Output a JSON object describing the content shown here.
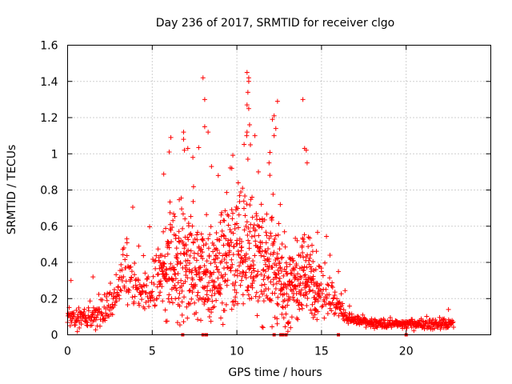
{
  "chart_data": {
    "type": "scatter",
    "title": "Day 236 of 2017, SRMTID for receiver clgo",
    "xlabel": "GPS time / hours",
    "ylabel": "SRMTID / TECUs",
    "xlim": [
      0,
      25
    ],
    "ylim": [
      0,
      1.6
    ],
    "xticks": [
      0,
      5,
      10,
      15,
      20
    ],
    "xtick_labels": [
      "0",
      "5",
      "10",
      "15",
      "20"
    ],
    "yticks": [
      0,
      0.2,
      0.4,
      0.6,
      0.8,
      1,
      1.2,
      1.4,
      1.6
    ],
    "ytick_labels": [
      "0",
      "0.2",
      "0.4",
      "0.6",
      "0.8",
      "1",
      "1.2",
      "1.4",
      "1.6"
    ],
    "grid": true,
    "marker": "plus",
    "series_color": "#ff0000",
    "envelope": {
      "description": "approximate density profile of SRMTID samples vs time (hours, TECU)",
      "x": [
        0,
        1,
        2,
        2.8,
        3.2,
        3.5,
        4,
        4.5,
        5,
        5.5,
        6,
        6.5,
        7,
        7.5,
        8,
        8.5,
        9,
        9.5,
        10,
        10.5,
        11,
        11.5,
        12,
        12.5,
        13,
        13.5,
        14,
        14.5,
        15,
        15.5,
        16,
        16.5,
        17,
        18,
        19,
        20,
        21,
        22,
        22.8
      ],
      "center": [
        0.1,
        0.09,
        0.12,
        0.18,
        0.3,
        0.35,
        0.27,
        0.22,
        0.28,
        0.33,
        0.4,
        0.4,
        0.38,
        0.35,
        0.33,
        0.3,
        0.38,
        0.42,
        0.48,
        0.5,
        0.45,
        0.35,
        0.4,
        0.35,
        0.22,
        0.28,
        0.35,
        0.3,
        0.25,
        0.22,
        0.16,
        0.1,
        0.08,
        0.06,
        0.06,
        0.06,
        0.06,
        0.06,
        0.06
      ],
      "spread": [
        0.05,
        0.05,
        0.06,
        0.08,
        0.12,
        0.15,
        0.12,
        0.1,
        0.12,
        0.16,
        0.25,
        0.28,
        0.28,
        0.28,
        0.25,
        0.25,
        0.25,
        0.28,
        0.3,
        0.32,
        0.3,
        0.28,
        0.28,
        0.25,
        0.18,
        0.2,
        0.22,
        0.18,
        0.14,
        0.12,
        0.08,
        0.04,
        0.03,
        0.025,
        0.025,
        0.025,
        0.025,
        0.025,
        0.025
      ]
    },
    "notable_points": [
      {
        "x": 8.0,
        "y": 1.42
      },
      {
        "x": 8.1,
        "y": 1.3
      },
      {
        "x": 8.1,
        "y": 1.15
      },
      {
        "x": 8.3,
        "y": 1.12
      },
      {
        "x": 10.6,
        "y": 1.45
      },
      {
        "x": 10.7,
        "y": 1.42
      },
      {
        "x": 10.7,
        "y": 1.4
      },
      {
        "x": 10.65,
        "y": 1.34
      },
      {
        "x": 10.6,
        "y": 1.27
      },
      {
        "x": 10.7,
        "y": 1.25
      },
      {
        "x": 10.75,
        "y": 1.16
      },
      {
        "x": 10.6,
        "y": 1.12
      },
      {
        "x": 10.8,
        "y": 1.05
      },
      {
        "x": 10.65,
        "y": 0.97
      },
      {
        "x": 12.4,
        "y": 1.29
      },
      {
        "x": 12.2,
        "y": 1.21
      },
      {
        "x": 12.1,
        "y": 1.19
      },
      {
        "x": 12.3,
        "y": 1.14
      },
      {
        "x": 12.2,
        "y": 1.1
      },
      {
        "x": 13.9,
        "y": 1.3
      },
      {
        "x": 14.0,
        "y": 1.03
      },
      {
        "x": 14.1,
        "y": 1.02
      },
      {
        "x": 14.15,
        "y": 0.95
      },
      {
        "x": 6.0,
        "y": 1.01
      },
      {
        "x": 6.1,
        "y": 1.09
      },
      {
        "x": 6.85,
        "y": 1.12
      },
      {
        "x": 6.85,
        "y": 1.08
      },
      {
        "x": 6.9,
        "y": 1.02
      },
      {
        "x": 7.1,
        "y": 1.03
      },
      {
        "x": 8.5,
        "y": 0.93
      },
      {
        "x": 9.7,
        "y": 0.92
      },
      {
        "x": 7.4,
        "y": 0.98
      },
      {
        "x": 8.9,
        "y": 0.88
      },
      {
        "x": 11.9,
        "y": 0.95
      },
      {
        "x": 3.5,
        "y": 0.53
      },
      {
        "x": 4.2,
        "y": 0.49
      },
      {
        "x": 0.2,
        "y": 0.3
      },
      {
        "x": 1.5,
        "y": 0.32
      },
      {
        "x": 22.5,
        "y": 0.14
      },
      {
        "x": 15.5,
        "y": 0.44
      },
      {
        "x": 16.0,
        "y": 0.35
      }
    ],
    "baseline_points": [
      {
        "x": 6.8,
        "y": 0.0
      },
      {
        "x": 8.0,
        "y": 0.0
      },
      {
        "x": 8.2,
        "y": 0.0
      },
      {
        "x": 12.2,
        "y": 0.0
      },
      {
        "x": 12.6,
        "y": 0.0
      },
      {
        "x": 12.7,
        "y": 0.0
      },
      {
        "x": 12.9,
        "y": 0.0
      },
      {
        "x": 16.0,
        "y": 0.0
      },
      {
        "x": 20.0,
        "y": 0.0
      }
    ]
  }
}
